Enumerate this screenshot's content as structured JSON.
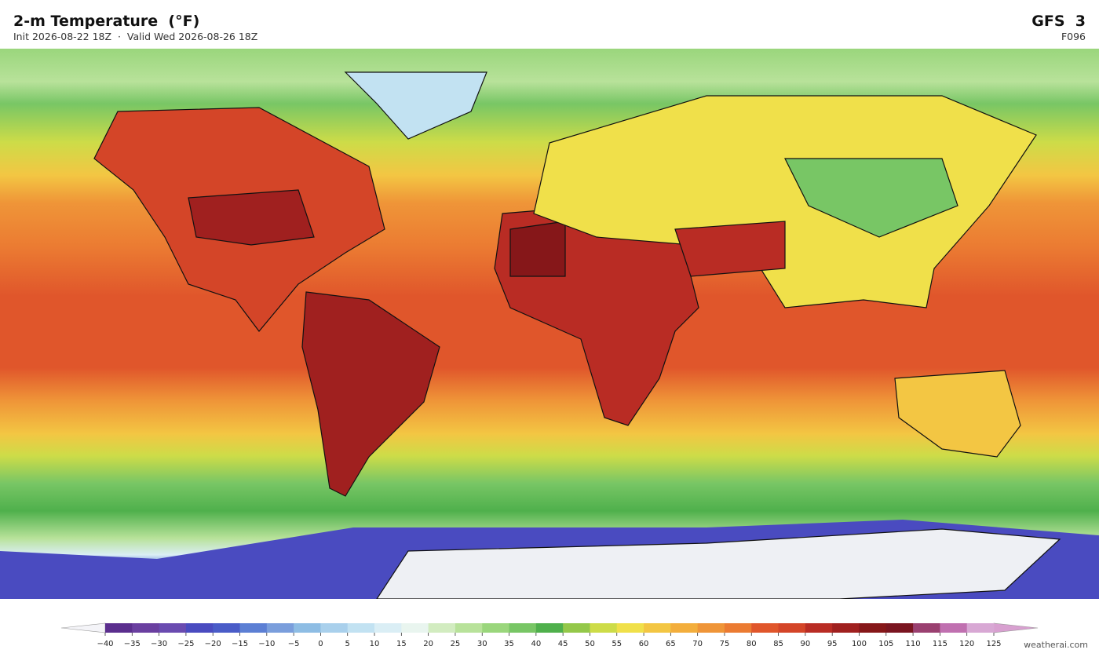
{
  "header": {
    "title": "2-m Temperature  (°F)",
    "subtitle": "Init 2026-08-22 18Z  ·  Valid Wed 2026-08-26 18Z",
    "model": "GFS  3",
    "forecast_hour": "F096"
  },
  "colorbar": {
    "ticks": [
      {
        "value": -40,
        "label": "−40"
      },
      {
        "value": -35,
        "label": "−35"
      },
      {
        "value": -30,
        "label": "−30"
      },
      {
        "value": -25,
        "label": "−25"
      },
      {
        "value": -20,
        "label": "−20"
      },
      {
        "value": -15,
        "label": "−15"
      },
      {
        "value": -10,
        "label": "−10"
      },
      {
        "value": -5,
        "label": "−5"
      },
      0,
      5,
      10,
      15,
      20,
      25,
      30,
      35,
      40,
      45,
      50,
      55,
      60,
      65,
      70,
      75,
      80,
      85,
      90,
      95,
      100,
      105,
      110,
      115,
      120,
      125
    ],
    "colors": [
      "#5b2e8e",
      "#6a3fa0",
      "#6a4bb0",
      "#4a4bc0",
      "#4a5cc8",
      "#5c7fd4",
      "#7a9edc",
      "#8ebde4",
      "#a9d0ec",
      "#c2e2f2",
      "#daeef5",
      "#e9f5ef",
      "#d2ecc0",
      "#b8e29a",
      "#9ad67c",
      "#78c665",
      "#4fb04c",
      "#94c84a",
      "#cddc48",
      "#f0e04a",
      "#f3c643",
      "#f3ae3c",
      "#ef9538",
      "#eb7b32",
      "#e0562b",
      "#d44528",
      "#b92c24",
      "#a0201f",
      "#861719",
      "#7a1520",
      "#9a4070",
      "#c070b0",
      "#d8a8d4"
    ],
    "extend_low_color": "#f4f4f8",
    "extend_high_color": "#d8a0d0"
  },
  "footer": {
    "credit": "weatherai.com"
  }
}
